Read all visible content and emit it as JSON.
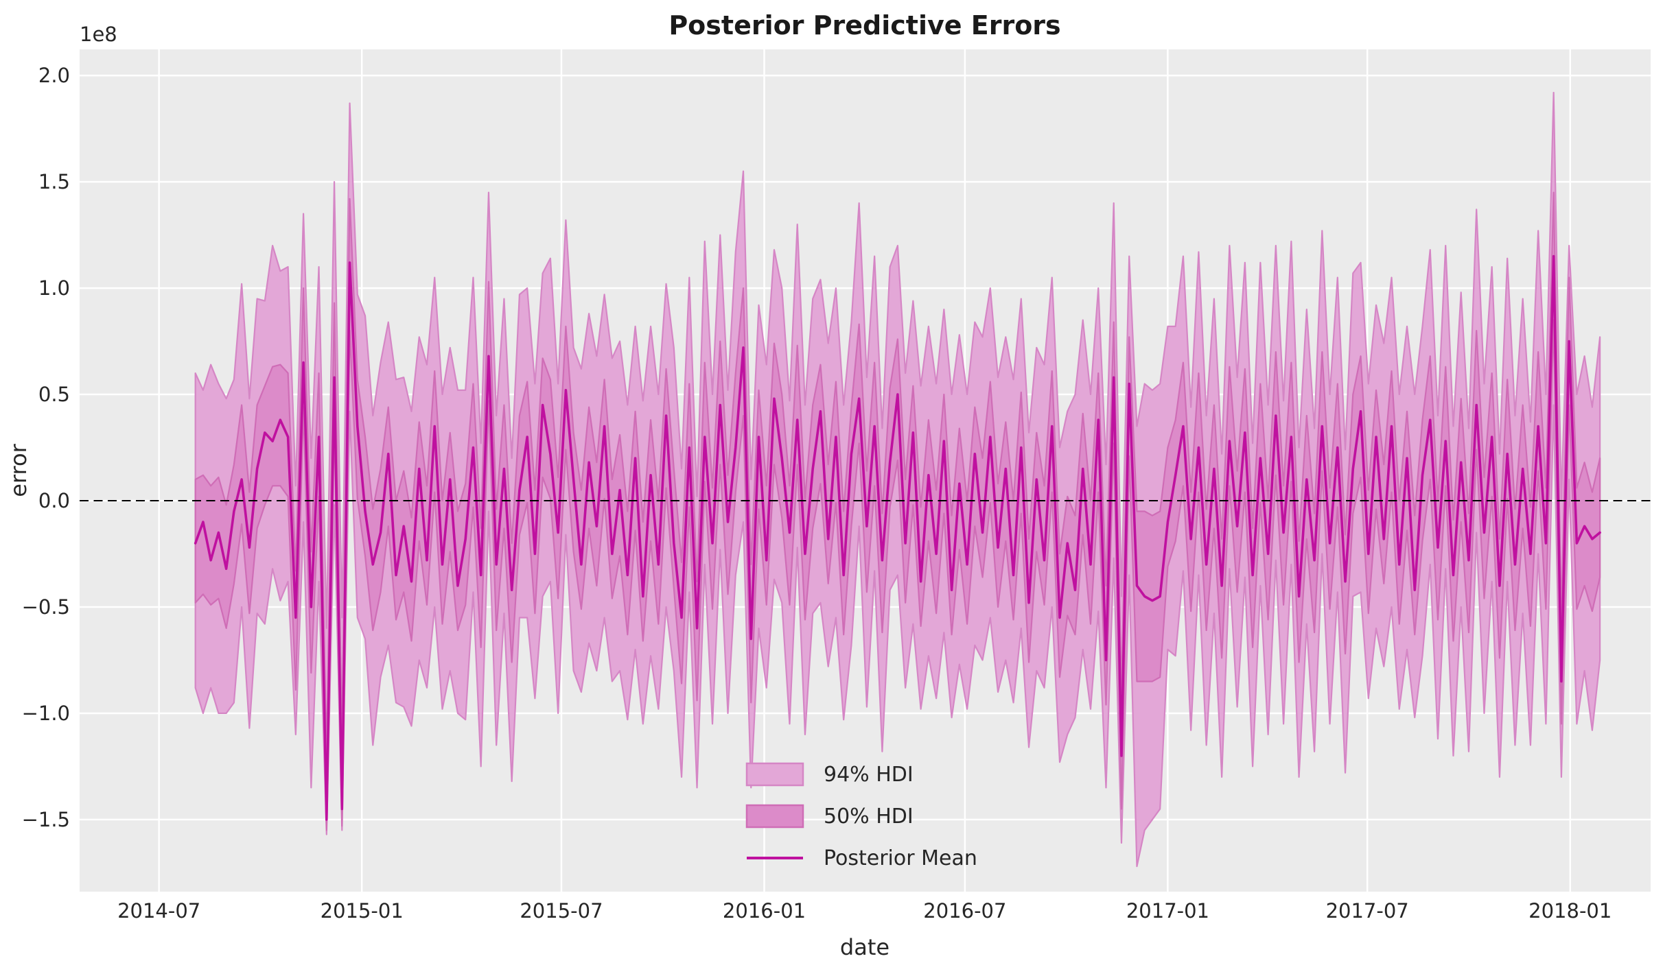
{
  "title": "Posterior Predictive Errors",
  "axes": {
    "xlabel": "date",
    "ylabel": "error",
    "offset_text": "1e8"
  },
  "legend": {
    "items": [
      {
        "swatch": "band94",
        "label": "94% HDI"
      },
      {
        "swatch": "band50",
        "label": "50% HDI"
      },
      {
        "swatch": "line",
        "label": "Posterior Mean"
      }
    ]
  },
  "chart_data": {
    "type": "area",
    "title": "Posterior Predictive Errors",
    "xlabel": "date",
    "ylabel": "error",
    "y_unit_multiplier": "1e8",
    "grid": true,
    "legend_position": "lower center",
    "zero_line": 0,
    "x_start_date": "2014-08-03",
    "x_step_days": 7,
    "xlim": [
      "2014-04-20",
      "2018-03-15"
    ],
    "ylim": [
      -1.839,
      2.123
    ],
    "x_ticks": [
      {
        "date": "2014-07-01",
        "label": "2014-07"
      },
      {
        "date": "2015-01-01",
        "label": "2015-01"
      },
      {
        "date": "2015-07-01",
        "label": "2015-07"
      },
      {
        "date": "2016-01-01",
        "label": "2016-01"
      },
      {
        "date": "2016-07-01",
        "label": "2016-07"
      },
      {
        "date": "2017-01-01",
        "label": "2017-01"
      },
      {
        "date": "2017-07-01",
        "label": "2017-07"
      },
      {
        "date": "2018-01-01",
        "label": "2018-01"
      }
    ],
    "y_ticks": [
      {
        "v": 2.0,
        "label": "2.0"
      },
      {
        "v": 1.5,
        "label": "1.5"
      },
      {
        "v": 1.0,
        "label": "1.0"
      },
      {
        "v": 0.5,
        "label": "0.5"
      },
      {
        "v": 0.0,
        "label": "0.0"
      },
      {
        "v": -0.5,
        "label": "−0.5"
      },
      {
        "v": -1.0,
        "label": "−1.0"
      },
      {
        "v": -1.5,
        "label": "−1.5"
      }
    ],
    "colors": {
      "band94_fill": "#e3a7d7",
      "band94_edge": "#d586c5",
      "band50_fill": "#dc8bc9",
      "band50_edge": "#cf6db6",
      "mean_line": "#bf119f",
      "plot_bg": "#ebebeb",
      "grid": "#ffffff",
      "zero": "#000000",
      "text": "#262626",
      "title": "#1a1a1a"
    },
    "series": {
      "mean": [
        -0.2,
        -0.1,
        -0.28,
        -0.15,
        -0.32,
        -0.05,
        0.1,
        -0.22,
        0.15,
        0.32,
        0.28,
        0.38,
        0.3,
        -0.55,
        0.65,
        -0.5,
        0.3,
        -1.5,
        0.58,
        -1.45,
        1.12,
        0.35,
        -0.05,
        -0.3,
        -0.15,
        0.22,
        -0.35,
        -0.12,
        -0.38,
        0.15,
        -0.28,
        0.35,
        -0.3,
        0.1,
        -0.4,
        -0.18,
        0.25,
        -0.35,
        0.68,
        -0.3,
        0.15,
        -0.42,
        0.05,
        0.3,
        -0.25,
        0.45,
        0.22,
        -0.15,
        0.52,
        0.1,
        -0.3,
        0.18,
        -0.12,
        0.35,
        -0.25,
        0.05,
        -0.35,
        0.2,
        -0.45,
        0.12,
        -0.3,
        0.4,
        -0.2,
        -0.55,
        0.25,
        -0.6,
        0.3,
        -0.2,
        0.45,
        -0.1,
        0.25,
        0.72,
        -0.65,
        0.3,
        -0.28,
        0.48,
        0.2,
        -0.15,
        0.38,
        -0.25,
        0.15,
        0.42,
        -0.18,
        0.3,
        -0.35,
        0.22,
        0.48,
        -0.12,
        0.35,
        -0.28,
        0.18,
        0.5,
        -0.2,
        0.32,
        -0.38,
        0.12,
        -0.25,
        0.28,
        -0.42,
        0.08,
        -0.3,
        0.22,
        -0.15,
        0.3,
        -0.22,
        0.15,
        -0.35,
        0.25,
        -0.48,
        0.1,
        -0.28,
        0.35,
        -0.55,
        -0.2,
        -0.42,
        0.15,
        -0.3,
        0.38,
        -0.75,
        0.58,
        -1.2,
        0.55,
        -0.4,
        -0.45,
        -0.47,
        -0.45,
        -0.1,
        0.12,
        0.35,
        -0.18,
        0.25,
        -0.3,
        0.15,
        -0.4,
        0.28,
        -0.12,
        0.32,
        -0.35,
        0.2,
        -0.25,
        0.4,
        -0.15,
        0.3,
        -0.45,
        0.1,
        -0.28,
        0.35,
        -0.2,
        0.25,
        -0.38,
        0.15,
        0.42,
        -0.25,
        0.3,
        -0.18,
        0.35,
        -0.3,
        0.2,
        -0.42,
        0.12,
        0.38,
        -0.22,
        0.28,
        -0.35,
        0.18,
        -0.28,
        0.45,
        -0.15,
        0.3,
        -0.4,
        0.22,
        -0.3,
        0.15,
        -0.25,
        0.35,
        -0.2,
        1.15,
        -0.85,
        0.75,
        -0.2,
        -0.12,
        -0.18,
        -0.15
      ],
      "hdi94_upper": [
        0.6,
        0.52,
        0.64,
        0.55,
        0.48,
        0.57,
        1.02,
        0.48,
        0.95,
        0.94,
        1.2,
        1.08,
        1.1,
        0.07,
        1.35,
        0.2,
        1.1,
        -0.6,
        1.5,
        -0.55,
        1.87,
        0.97,
        0.87,
        0.4,
        0.65,
        0.84,
        0.57,
        0.58,
        0.42,
        0.77,
        0.64,
        1.05,
        0.5,
        0.72,
        0.52,
        0.52,
        1.05,
        0.27,
        1.45,
        0.4,
        0.95,
        0.2,
        0.97,
        1.0,
        0.55,
        1.07,
        1.14,
        0.55,
        1.32,
        0.72,
        0.62,
        0.88,
        0.68,
        0.97,
        0.67,
        0.75,
        0.45,
        0.82,
        0.47,
        0.82,
        0.5,
        1.02,
        0.72,
        0.15,
        1.05,
        0.02,
        1.22,
        0.5,
        1.25,
        0.52,
        1.17,
        1.55,
        0.1,
        0.92,
        0.64,
        1.18,
        1.0,
        0.47,
        1.3,
        0.45,
        0.95,
        1.04,
        0.74,
        1.0,
        0.45,
        0.84,
        1.4,
        0.58,
        1.15,
        0.34,
        1.1,
        1.2,
        0.6,
        0.94,
        0.54,
        0.82,
        0.55,
        0.9,
        0.5,
        0.78,
        0.5,
        0.84,
        0.77,
        1.0,
        0.58,
        0.77,
        0.57,
        0.95,
        0.32,
        0.72,
        0.64,
        1.05,
        0.25,
        0.42,
        0.5,
        0.85,
        0.5,
        1.0,
        0.17,
        1.4,
        -0.45,
        1.15,
        0.35,
        0.55,
        0.52,
        0.55,
        0.82,
        0.82,
        1.15,
        0.44,
        1.17,
        0.4,
        0.95,
        0.22,
        1.2,
        0.58,
        1.12,
        0.27,
        1.12,
        0.45,
        1.2,
        0.47,
        1.22,
        0.25,
        0.9,
        0.34,
        1.27,
        0.5,
        1.05,
        0.24,
        1.07,
        1.12,
        0.55,
        0.92,
        0.74,
        1.05,
        0.5,
        0.82,
        0.5,
        0.82,
        1.18,
        0.4,
        1.2,
        0.35,
        0.98,
        0.34,
        1.37,
        0.55,
        1.1,
        0.22,
        1.14,
        0.4,
        0.95,
        0.37,
        1.27,
        0.5,
        1.92,
        0.0,
        1.2,
        0.5,
        0.68,
        0.44,
        0.77
      ],
      "hdi94_lower": [
        -0.88,
        -1.0,
        -0.88,
        -1.0,
        -1.0,
        -0.95,
        -0.5,
        -1.07,
        -0.53,
        -0.58,
        -0.32,
        -0.47,
        -0.38,
        -1.1,
        -0.1,
        -1.35,
        -0.38,
        -1.57,
        -0.02,
        -1.55,
        0.42,
        -0.55,
        -0.65,
        -1.15,
        -0.83,
        -0.68,
        -0.95,
        -0.97,
        -1.06,
        -0.75,
        -0.88,
        -0.5,
        -0.98,
        -0.8,
        -1.0,
        -1.03,
        -0.43,
        -1.25,
        -0.05,
        -1.15,
        -0.53,
        -1.32,
        -0.55,
        -0.55,
        -0.93,
        -0.45,
        -0.38,
        -1.0,
        -0.16,
        -0.8,
        -0.9,
        -0.67,
        -0.8,
        -0.55,
        -0.85,
        -0.8,
        -1.03,
        -0.7,
        -1.05,
        -0.73,
        -0.98,
        -0.5,
        -0.8,
        -1.3,
        -0.43,
        -1.35,
        -0.3,
        -1.05,
        -0.23,
        -1.0,
        -0.35,
        -0.1,
        -1.35,
        -0.6,
        -0.88,
        -0.37,
        -0.48,
        -1.05,
        -0.22,
        -1.1,
        -0.53,
        -0.48,
        -0.78,
        -0.55,
        -1.03,
        -0.68,
        -0.12,
        -0.97,
        -0.33,
        -1.18,
        -0.42,
        -0.35,
        -0.88,
        -0.58,
        -0.98,
        -0.73,
        -0.93,
        -0.62,
        -1.02,
        -0.77,
        -0.98,
        -0.68,
        -0.75,
        -0.55,
        -0.9,
        -0.75,
        -0.95,
        -0.6,
        -1.16,
        -0.8,
        -0.88,
        -0.5,
        -1.23,
        -1.1,
        -1.02,
        -0.7,
        -0.98,
        -0.52,
        -1.35,
        -0.27,
        -1.61,
        -0.35,
        -1.72,
        -1.55,
        -1.5,
        -1.45,
        -0.7,
        -0.73,
        -0.33,
        -1.08,
        -0.35,
        -1.15,
        -0.53,
        -1.3,
        -0.32,
        -0.97,
        -0.36,
        -1.25,
        -0.4,
        -1.1,
        -0.28,
        -1.05,
        -0.3,
        -1.3,
        -0.58,
        -1.18,
        -0.25,
        -1.05,
        -0.43,
        -1.28,
        -0.45,
        -0.43,
        -0.93,
        -0.6,
        -0.78,
        -0.5,
        -0.98,
        -0.7,
        -1.02,
        -0.73,
        -0.3,
        -1.12,
        -0.32,
        -1.2,
        -0.5,
        -1.18,
        -0.15,
        -1.0,
        -0.38,
        -1.3,
        -0.38,
        -1.15,
        -0.53,
        -1.15,
        -0.25,
        -1.05,
        0.45,
        -1.3,
        0.1,
        -1.05,
        -0.8,
        -1.08,
        -0.75
      ],
      "hdi50_upper": [
        0.1,
        0.12,
        0.07,
        0.11,
        -0.02,
        0.17,
        0.45,
        0.04,
        0.45,
        0.54,
        0.63,
        0.64,
        0.6,
        -0.33,
        1.0,
        -0.24,
        0.6,
        -1.2,
        0.93,
        -1.1,
        1.42,
        0.57,
        0.3,
        -0.04,
        0.15,
        0.44,
        0.0,
        0.14,
        -0.08,
        0.37,
        0.07,
        0.61,
        0.0,
        0.32,
        -0.05,
        0.08,
        0.55,
        -0.13,
        1.03,
        -0.04,
        0.45,
        -0.2,
        0.4,
        0.56,
        0.05,
        0.67,
        0.57,
        0.11,
        0.82,
        0.32,
        0.05,
        0.44,
        0.18,
        0.57,
        0.1,
        0.31,
        -0.05,
        0.42,
        -0.1,
        0.38,
        0.0,
        0.62,
        0.15,
        -0.29,
        0.55,
        -0.38,
        0.65,
        0.06,
        0.75,
        0.12,
        0.6,
        1.0,
        -0.3,
        0.52,
        0.07,
        0.74,
        0.5,
        0.07,
        0.73,
        0.01,
        0.45,
        0.64,
        0.17,
        0.56,
        -0.05,
        0.44,
        0.83,
        0.14,
        0.65,
        -0.06,
        0.53,
        0.76,
        0.1,
        0.54,
        -0.03,
        0.38,
        0.05,
        0.5,
        -0.07,
        0.34,
        0.0,
        0.44,
        0.2,
        0.56,
        0.08,
        0.37,
        0.0,
        0.51,
        -0.18,
        0.32,
        0.07,
        0.61,
        -0.25,
        0.02,
        -0.07,
        0.41,
        0.0,
        0.6,
        -0.4,
        0.84,
        -0.9,
        0.77,
        -0.05,
        -0.05,
        -0.07,
        -0.05,
        0.25,
        0.38,
        0.65,
        0.04,
        0.6,
        -0.04,
        0.45,
        -0.18,
        0.63,
        0.14,
        0.62,
        -0.13,
        0.55,
        0.01,
        0.7,
        0.07,
        0.65,
        -0.19,
        0.4,
        -0.06,
        0.7,
        0.06,
        0.55,
        -0.16,
        0.5,
        0.68,
        0.05,
        0.52,
        0.17,
        0.61,
        0.0,
        0.42,
        -0.07,
        0.38,
        0.68,
        0.0,
        0.63,
        -0.09,
        0.48,
        -0.06,
        0.8,
        0.11,
        0.6,
        -0.18,
        0.57,
        -0.04,
        0.45,
        -0.03,
        0.7,
        0.06,
        1.45,
        -0.55,
        1.05,
        0.06,
        0.18,
        0.04,
        0.2
      ],
      "hdi50_lower": [
        -0.48,
        -0.44,
        -0.49,
        -0.46,
        -0.6,
        -0.39,
        -0.11,
        -0.53,
        -0.13,
        -0.02,
        0.07,
        0.07,
        0.02,
        -0.89,
        0.44,
        -0.81,
        0.02,
        -1.55,
        0.37,
        -1.53,
        0.8,
        0.01,
        -0.26,
        -0.61,
        -0.43,
        -0.12,
        -0.56,
        -0.43,
        -0.66,
        -0.19,
        -0.49,
        0.04,
        -0.58,
        -0.24,
        -0.61,
        -0.49,
        -0.03,
        -0.69,
        0.47,
        -0.61,
        -0.13,
        -0.76,
        -0.16,
        -0.01,
        -0.53,
        0.11,
        0.01,
        -0.46,
        0.24,
        -0.24,
        -0.51,
        -0.13,
        -0.4,
        0.01,
        -0.46,
        -0.26,
        -0.63,
        -0.14,
        -0.66,
        -0.19,
        -0.58,
        0.06,
        -0.41,
        -0.86,
        -0.03,
        -0.94,
        0.09,
        -0.51,
        0.17,
        -0.44,
        0.04,
        0.4,
        -0.95,
        -0.04,
        -0.49,
        0.17,
        -0.08,
        -0.49,
        0.17,
        -0.56,
        -0.13,
        0.08,
        -0.39,
        -0.01,
        -0.63,
        -0.12,
        0.27,
        -0.43,
        0.07,
        -0.62,
        -0.03,
        0.19,
        -0.48,
        -0.02,
        -0.59,
        -0.19,
        -0.53,
        -0.06,
        -0.63,
        -0.23,
        -0.58,
        -0.12,
        -0.36,
        -0.01,
        -0.5,
        -0.19,
        -0.56,
        -0.06,
        -0.76,
        -0.24,
        -0.49,
        0.04,
        -0.83,
        -0.54,
        -0.63,
        -0.16,
        -0.58,
        0.04,
        -0.96,
        0.27,
        -1.45,
        0.21,
        -0.85,
        -0.85,
        -0.85,
        -0.83,
        -0.31,
        -0.19,
        0.07,
        -0.52,
        0.04,
        -0.61,
        -0.13,
        -0.74,
        0.07,
        -0.43,
        0.04,
        -0.69,
        -0.01,
        -0.56,
        0.12,
        -0.49,
        0.09,
        -0.76,
        -0.18,
        -0.62,
        0.14,
        -0.51,
        -0.03,
        -0.72,
        -0.06,
        0.11,
        -0.53,
        -0.04,
        -0.39,
        0.04,
        -0.58,
        -0.14,
        -0.63,
        -0.19,
        0.1,
        -0.56,
        0.07,
        -0.66,
        -0.1,
        -0.62,
        0.24,
        -0.46,
        0.02,
        -0.74,
        0.01,
        -0.61,
        -0.13,
        -0.59,
        0.14,
        -0.51,
        0.85,
        -1.05,
        0.45,
        -0.51,
        -0.4,
        -0.52,
        -0.36
      ]
    }
  }
}
